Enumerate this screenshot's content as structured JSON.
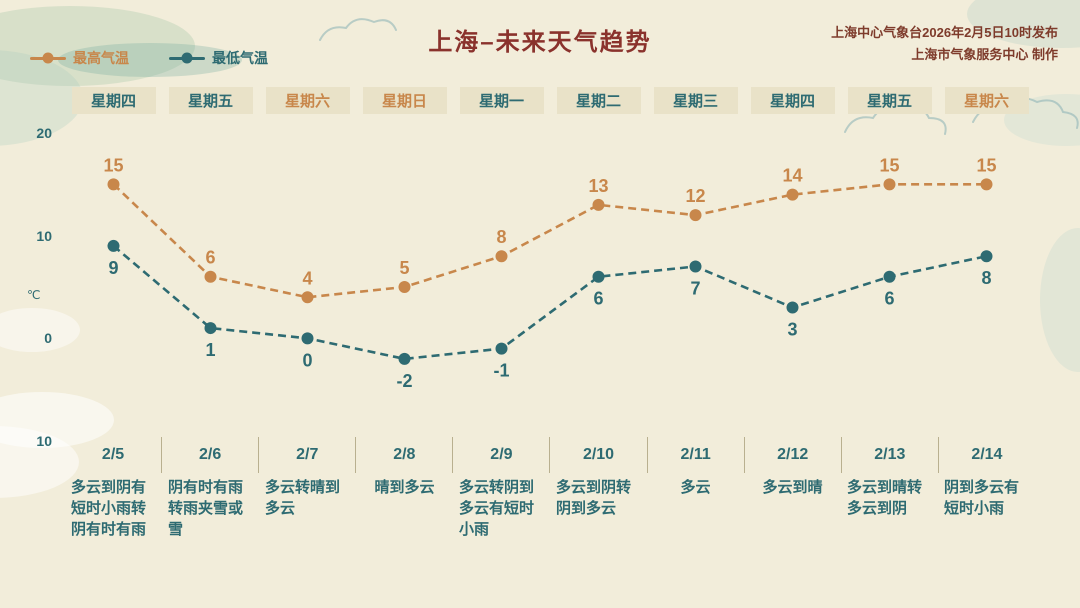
{
  "header": {
    "title": "上海–未来天气趋势",
    "source_line1": "上海中心气象台2026年2月5日10时发布",
    "source_line2": "上海市气象服务中心 制作"
  },
  "legend": {
    "high_label": "最高气温",
    "low_label": "最低气温"
  },
  "colors": {
    "high": "#c8874b",
    "low": "#2e6b72",
    "weekend": "#c8874b",
    "title": "#8a322c",
    "source": "#7e3b2b",
    "axis": "#2e6b72",
    "week_box_bg": "#e9e2c8",
    "separator": "#b9b08f",
    "background": "#f2edda"
  },
  "chart_data": {
    "type": "line",
    "title": "上海–未来天气趋势",
    "categories": [
      "2/5",
      "2/6",
      "2/7",
      "2/8",
      "2/9",
      "2/10",
      "2/11",
      "2/12",
      "2/13",
      "2/14"
    ],
    "weekdays": [
      "星期四",
      "星期五",
      "星期六",
      "星期日",
      "星期一",
      "星期二",
      "星期三",
      "星期四",
      "星期五",
      "星期六"
    ],
    "weekend_flags": [
      false,
      false,
      true,
      true,
      false,
      false,
      false,
      false,
      false,
      true
    ],
    "series": [
      {
        "name": "最高气温",
        "values": [
          15,
          6,
          4,
          5,
          8,
          13,
          12,
          14,
          15,
          15
        ]
      },
      {
        "name": "最低气温",
        "values": [
          9,
          1,
          0,
          -2,
          -1,
          6,
          7,
          3,
          6,
          8
        ]
      }
    ],
    "descriptions": [
      "多云到阴有短时小雨转阴有时有雨",
      "阴有时有雨转雨夹雪或雪",
      "多云转晴到多云",
      "晴到多云",
      "多云转阴到多云有短时小雨",
      "多云到阴转阴到多云",
      "多云",
      "多云到晴",
      "多云到晴转多云到阴",
      "阴到多云有短时小雨"
    ],
    "ylabel": "℃",
    "ytick_labels": [
      "20",
      "10",
      "0",
      "10"
    ],
    "ylim": [
      -10,
      20
    ],
    "grid": false,
    "line_style": "dashed",
    "legend_position": "top-left"
  }
}
